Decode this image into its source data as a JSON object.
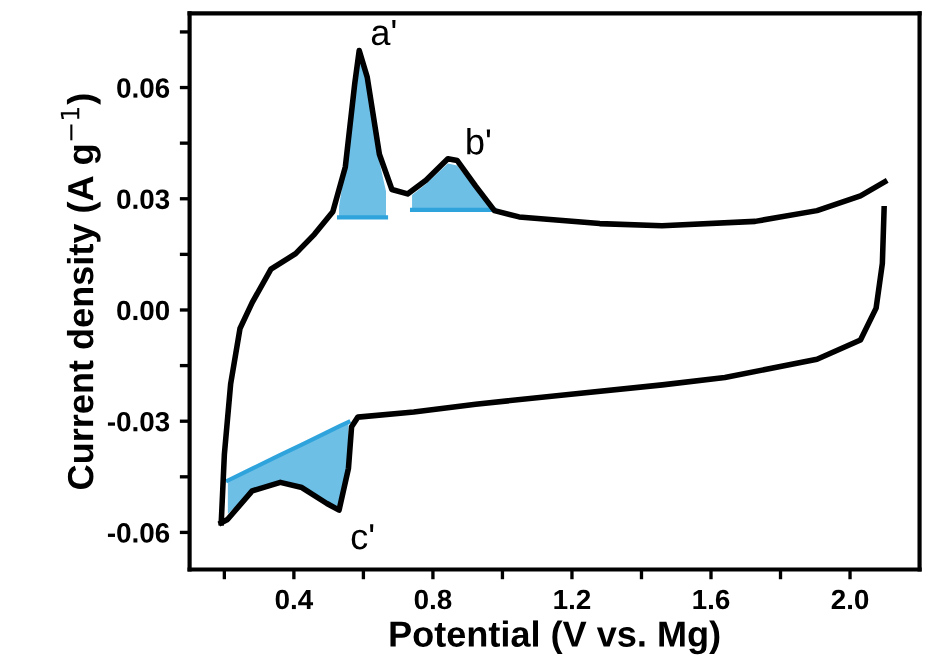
{
  "chart_data": {
    "type": "line",
    "xlabel": "Potential (V vs. Mg)",
    "ylabel": "Current density (A g$^{−1}$)",
    "xlim": [
      0.1,
      2.2
    ],
    "ylim": [
      -0.07,
      0.08
    ],
    "xticks": [
      {
        "value": 0.2,
        "label": null
      },
      0.4,
      {
        "value": 0.6,
        "label": null
      },
      0.8,
      {
        "value": 1.0,
        "label": null
      },
      1.2,
      {
        "value": 1.4,
        "label": null
      },
      1.6,
      {
        "value": 1.8,
        "label": null
      },
      {
        "value": 2.0,
        "label": "2.0"
      }
    ],
    "yticks": [
      {
        "value": -0.06,
        "label": "-0.06"
      },
      {
        "value": -0.045,
        "label": null
      },
      {
        "value": -0.03,
        "label": "-0.03"
      },
      {
        "value": -0.015,
        "label": null
      },
      {
        "value": 0.0,
        "label": "0.00"
      },
      {
        "value": 0.015,
        "label": null
      },
      {
        "value": 0.03,
        "label": "0.03"
      },
      {
        "value": 0.045,
        "label": null
      },
      {
        "value": 0.06,
        "label": "0.06"
      },
      {
        "value": 0.075,
        "label": null
      }
    ],
    "grid": false,
    "legend": false,
    "marker": "none",
    "line_style": "solid",
    "series": [
      {
        "color": "#2fa4dc",
        "x": [
          0.53,
          0.548,
          0.575,
          0.588,
          0.611,
          0.646,
          0.665
        ],
        "values": [
          0.025,
          0.025,
          0.025,
          0.025,
          0.025,
          0.025,
          0.025
        ],
        "lower": [
          0.025,
          0.025,
          0.025,
          0.025,
          0.025,
          0.025,
          0.025
        ],
        "upper": [
          0.028,
          0.0386,
          0.061,
          0.068,
          0.062,
          0.04,
          0.032
        ]
      },
      {
        "color": "#2fa4dc",
        "x": [
          0.74,
          0.78,
          0.843,
          0.87,
          0.923,
          0.977
        ],
        "values": [
          0.027,
          0.027,
          0.027,
          0.027,
          0.027,
          0.027
        ],
        "lower": [
          0.027,
          0.027,
          0.027,
          0.027,
          0.027,
          0.027
        ],
        "upper": [
          0.031,
          0.034,
          0.0395,
          0.039,
          0.0325,
          0.027
        ]
      },
      {
        "color": "#2fa4dc",
        "x": [
          0.21,
          0.28,
          0.361,
          0.423,
          0.495,
          0.53,
          0.557
        ],
        "values": [
          -0.046,
          -0.0428,
          -0.0391,
          -0.0363,
          -0.033,
          -0.0314,
          -0.0302
        ],
        "lower": [
          -0.055,
          -0.0488,
          -0.0465,
          -0.0479,
          -0.0522,
          -0.053,
          -0.0427
        ],
        "upper": [
          -0.046,
          -0.0428,
          -0.0391,
          -0.0363,
          -0.033,
          -0.0314,
          -0.0302
        ]
      },
      {
        "color": "#000000",
        "x": [
          0.191,
          0.2,
          0.218,
          0.245,
          0.28,
          0.334,
          0.405,
          0.459,
          0.512,
          0.548,
          0.575,
          0.588,
          0.611,
          0.646,
          0.682,
          0.727,
          0.78,
          0.843,
          0.87,
          0.923,
          0.977,
          1.048,
          1.28,
          1.459,
          1.727,
          1.905,
          2.03,
          2.1
        ],
        "values": [
          -0.0574,
          -0.039,
          -0.02,
          -0.005,
          0.002,
          0.011,
          0.0152,
          0.0204,
          0.0265,
          0.0386,
          0.061,
          0.07,
          0.0628,
          0.042,
          0.0325,
          0.0313,
          0.035,
          0.0408,
          0.0403,
          0.0334,
          0.0268,
          0.0251,
          0.0233,
          0.0227,
          0.0239,
          0.0268,
          0.0308,
          0.0346
        ]
      },
      {
        "color": "#000000",
        "x": [
          0.191,
          0.209,
          0.28,
          0.361,
          0.423,
          0.495,
          0.53,
          0.557,
          0.566,
          0.584,
          0.745,
          0.923,
          1.19,
          1.46,
          1.64,
          1.905,
          2.03,
          2.075,
          2.093,
          2.098
        ],
        "values": [
          -0.0574,
          -0.0565,
          -0.0488,
          -0.0465,
          -0.0479,
          -0.0522,
          -0.054,
          -0.0427,
          -0.0315,
          -0.0289,
          -0.0275,
          -0.0254,
          -0.0228,
          -0.0202,
          -0.0182,
          -0.0133,
          -0.0081,
          0.0005,
          0.0126,
          0.0273
        ]
      }
    ],
    "annotations": [
      {
        "text": "a'",
        "x": 0.588,
        "y": 0.07
      },
      {
        "text": "b'",
        "x": 0.86,
        "y": 0.0405
      },
      {
        "text": "c'",
        "x": 0.53,
        "y": -0.054
      }
    ]
  }
}
